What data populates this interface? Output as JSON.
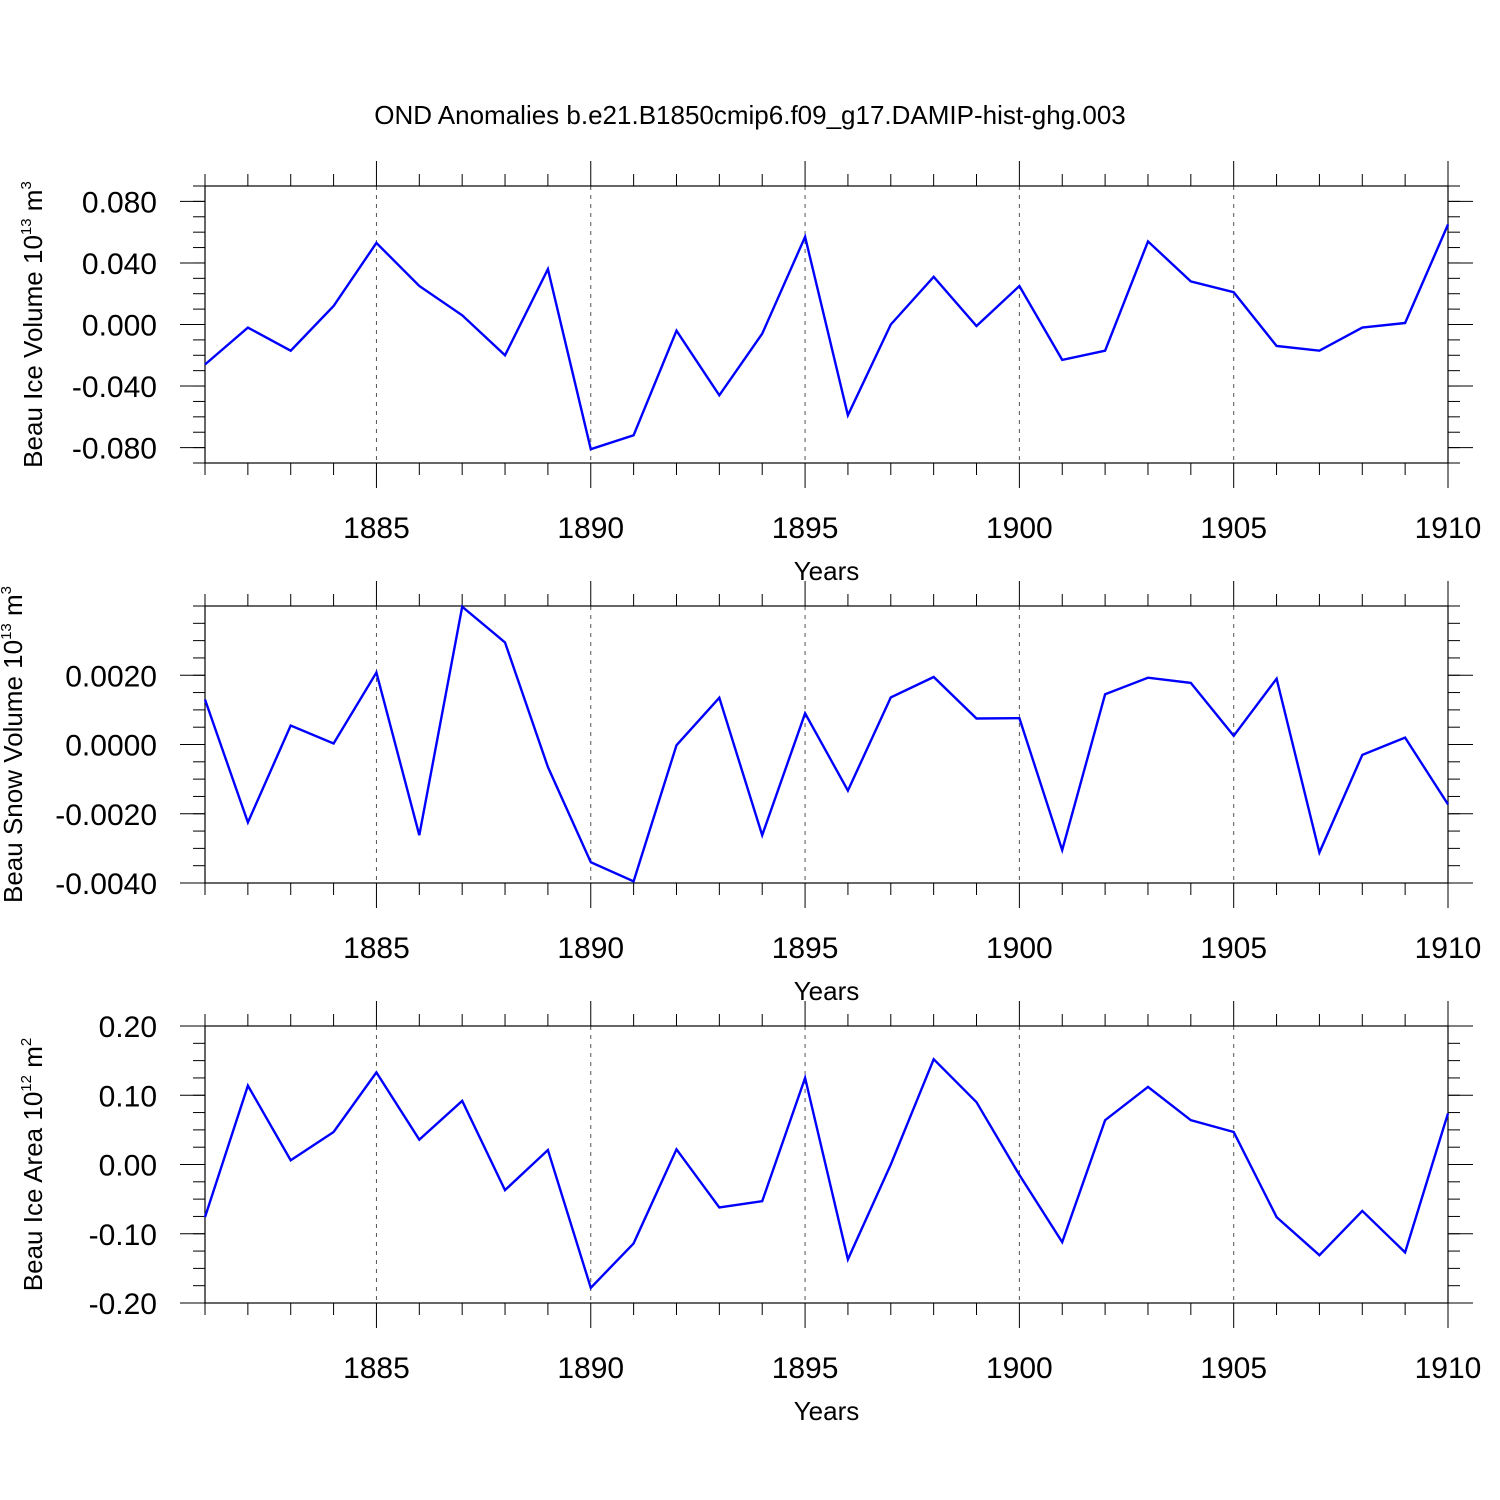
{
  "title": "OND Anomalies b.e21.B1850cmip6.f09_g17.DAMIP-hist-ghg.003",
  "colors": {
    "series": "#0000ff",
    "axes": "#000000",
    "grid": "#555555"
  },
  "chart_data": [
    {
      "type": "line",
      "ylabel": {
        "text": "Beau Ice Volume 10",
        "exp": "13",
        "unit": " m",
        "unit_exp": "3"
      },
      "xlabel": "Years",
      "xlim": [
        1881,
        1910
      ],
      "ylim": [
        -0.09,
        0.09
      ],
      "x_ticks": [
        "1885",
        "1890",
        "1895",
        "1900",
        "1905",
        "1910"
      ],
      "y_ticks": [
        "0.080",
        "0.040",
        "0.000",
        "-0.040",
        "-0.080"
      ],
      "y_tick_values": [
        0.08,
        0.04,
        0.0,
        -0.04,
        -0.08
      ],
      "y_minor_step": 0.01,
      "grid": "vertical dashed at major x ticks",
      "x": [
        1881,
        1882,
        1883,
        1884,
        1885,
        1886,
        1887,
        1888,
        1889,
        1890,
        1891,
        1892,
        1893,
        1894,
        1895,
        1896,
        1897,
        1898,
        1899,
        1900,
        1901,
        1902,
        1903,
        1904,
        1905,
        1906,
        1907,
        1908,
        1909,
        1910
      ],
      "series": [
        {
          "values": [
            -0.026,
            -0.002,
            -0.017,
            0.012,
            0.053,
            0.025,
            0.006,
            -0.02,
            0.036,
            -0.081,
            -0.072,
            -0.004,
            -0.046,
            -0.006,
            0.057,
            -0.059,
            0.0,
            0.031,
            -0.001,
            0.025,
            -0.023,
            -0.017,
            0.054,
            0.028,
            0.021,
            -0.014,
            -0.017,
            -0.002,
            0.001,
            0.065
          ]
        }
      ]
    },
    {
      "type": "line",
      "ylabel": {
        "text": "Beau Snow Volume 10",
        "exp": "13",
        "unit": " m",
        "unit_exp": "3"
      },
      "xlabel": "Years",
      "xlim": [
        1881,
        1910
      ],
      "ylim": [
        -0.004,
        0.004
      ],
      "x_ticks": [
        "1885",
        "1890",
        "1895",
        "1900",
        "1905",
        "1910"
      ],
      "y_ticks": [
        "0.0020",
        "0.0000",
        "-0.0020",
        "-0.0040"
      ],
      "y_tick_values": [
        0.002,
        0.0,
        -0.002,
        -0.004
      ],
      "y_minor_step": 0.0005,
      "grid": "vertical dashed at major x ticks",
      "x": [
        1881,
        1882,
        1883,
        1884,
        1885,
        1886,
        1887,
        1888,
        1889,
        1890,
        1891,
        1892,
        1893,
        1894,
        1895,
        1896,
        1897,
        1898,
        1899,
        1900,
        1901,
        1902,
        1903,
        1904,
        1905,
        1906,
        1907,
        1908,
        1909,
        1910
      ],
      "series": [
        {
          "values": [
            0.0013,
            -0.00225,
            0.00055,
            3e-05,
            0.00208,
            -0.00262,
            0.00398,
            0.00295,
            -0.00065,
            -0.0034,
            -0.00395,
            -2e-05,
            0.00135,
            -0.00262,
            0.0009,
            -0.00133,
            0.00136,
            0.00195,
            0.00075,
            0.00076,
            -0.00305,
            0.00145,
            0.00193,
            0.00178,
            0.00025,
            0.0019,
            -0.00312,
            -0.0003,
            0.0002,
            -0.00173
          ]
        }
      ]
    },
    {
      "type": "line",
      "ylabel": {
        "text": "Beau Ice Area 10",
        "exp": "12",
        "unit": " m",
        "unit_exp": "2"
      },
      "xlabel": "Years",
      "xlim": [
        1881,
        1910
      ],
      "ylim": [
        -0.2,
        0.2
      ],
      "x_ticks": [
        "1885",
        "1890",
        "1895",
        "1900",
        "1905",
        "1910"
      ],
      "y_ticks": [
        "0.20",
        "0.10",
        "0.00",
        "-0.10",
        "-0.20"
      ],
      "y_tick_values": [
        0.2,
        0.1,
        0.0,
        -0.1,
        -0.2
      ],
      "y_minor_step": 0.025,
      "grid": "vertical dashed at major x ticks",
      "x": [
        1881,
        1882,
        1883,
        1884,
        1885,
        1886,
        1887,
        1888,
        1889,
        1890,
        1891,
        1892,
        1893,
        1894,
        1895,
        1896,
        1897,
        1898,
        1899,
        1900,
        1901,
        1902,
        1903,
        1904,
        1905,
        1906,
        1907,
        1908,
        1909,
        1910
      ],
      "series": [
        {
          "values": [
            -0.076,
            0.114,
            0.006,
            0.047,
            0.133,
            0.036,
            0.092,
            -0.037,
            0.021,
            -0.178,
            -0.114,
            0.022,
            -0.062,
            -0.053,
            0.125,
            -0.137,
            0.0,
            0.152,
            0.09,
            -0.015,
            -0.112,
            0.064,
            0.112,
            0.064,
            0.047,
            -0.076,
            -0.131,
            -0.067,
            -0.127,
            0.074
          ]
        }
      ]
    }
  ]
}
